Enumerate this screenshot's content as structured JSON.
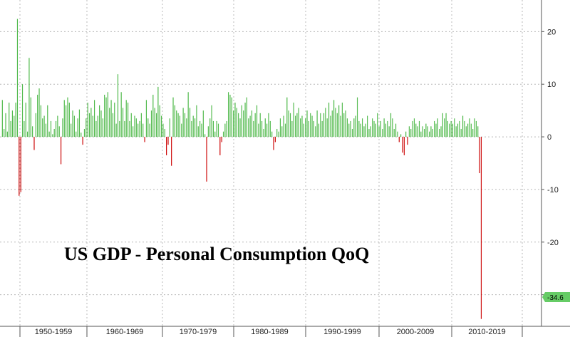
{
  "chart_data": {
    "type": "bar",
    "title": "US GDP - Personal Consumption QoQ",
    "xlabel": "",
    "ylabel": "",
    "ylim": [
      -36,
      26
    ],
    "y_ticks": [
      20,
      10,
      0,
      -10,
      -20,
      -30
    ],
    "y_tick_labels": [
      "20",
      "10",
      "0",
      "-10",
      "-20",
      "-30"
    ],
    "grid": true,
    "last_value_label": "-34.6",
    "decades": [
      "1950-1959",
      "1960-1969",
      "1970-1979",
      "1980-1989",
      "1990-1999",
      "2000-2009",
      "2010-2019"
    ],
    "start": "1947 Q2",
    "frequency": "quarterly",
    "colors": {
      "positive": "#4db848",
      "negative": "#cc0000",
      "badge": "#66cc66"
    },
    "values": [
      7.0,
      1.5,
      4.5,
      1.0,
      6.5,
      3.0,
      5.0,
      4.0,
      6.5,
      22.4,
      -11.2,
      -10.5,
      10.0,
      3.0,
      6.5,
      1.0,
      15.0,
      7.5,
      2.0,
      -2.5,
      4.5,
      8.0,
      9.2,
      6.0,
      3.5,
      4.0,
      2.5,
      6.0,
      1.0,
      3.0,
      0.5,
      1.5,
      3.0,
      4.0,
      2.0,
      -5.2,
      3.5,
      7.0,
      6.0,
      7.5,
      6.5,
      2.5,
      5.0,
      4.0,
      1.0,
      3.5,
      5.2,
      0.8,
      -1.5,
      1.5,
      3.5,
      6.5,
      4.5,
      5.5,
      4.0,
      7.0,
      3.0,
      4.0,
      6.0,
      5.0,
      3.5,
      8.0,
      7.5,
      8.5,
      5.5,
      7.0,
      4.5,
      6.5,
      2.5,
      11.9,
      3.0,
      8.5,
      5.5,
      3.0,
      7.0,
      6.5,
      3.0,
      4.5,
      2.0,
      4.0,
      3.5,
      2.5,
      3.0,
      4.5,
      2.5,
      -1.0,
      7.0,
      3.5,
      2.5,
      5.0,
      8.0,
      5.5,
      4.5,
      9.5,
      6.0,
      4.0,
      2.5,
      1.5,
      -3.5,
      -1.5,
      3.5,
      -5.5,
      7.5,
      6.0,
      5.0,
      4.5,
      4.0,
      2.5,
      5.5,
      4.5,
      3.5,
      8.5,
      5.5,
      3.0,
      4.0,
      3.5,
      6.0,
      2.0,
      3.0,
      2.5,
      5.0,
      0.5,
      -8.5,
      2.0,
      3.5,
      6.0,
      3.0,
      1.0,
      3.0,
      2.5,
      -3.5,
      -1.0,
      1.0,
      2.5,
      3.0,
      8.5,
      8.0,
      7.5,
      5.0,
      6.5,
      5.5,
      4.5,
      3.5,
      6.0,
      5.0,
      6.5,
      7.5,
      3.5,
      4.0,
      5.0,
      3.0,
      4.5,
      6.0,
      2.5,
      4.5,
      3.0,
      1.5,
      3.5,
      2.5,
      4.5,
      3.0,
      1.0,
      -2.5,
      -1.0,
      1.5,
      1.0,
      3.5,
      2.0,
      4.0,
      2.5,
      7.5,
      5.0,
      4.5,
      3.0,
      6.5,
      4.0,
      4.5,
      5.5,
      3.5,
      4.0,
      2.5,
      3.5,
      5.0,
      3.0,
      4.5,
      4.0,
      3.0,
      2.0,
      5.0,
      2.5,
      4.5,
      3.0,
      4.5,
      5.5,
      3.5,
      6.5,
      4.0,
      5.0,
      7.0,
      5.5,
      4.5,
      6.0,
      4.0,
      6.5,
      4.5,
      5.0,
      3.5,
      2.5,
      3.0,
      1.5,
      3.5,
      4.0,
      7.5,
      3.0,
      2.5,
      3.5,
      2.0,
      2.5,
      4.0,
      1.5,
      2.0,
      3.5,
      3.0,
      2.5,
      4.5,
      2.0,
      3.0,
      1.5,
      3.5,
      2.5,
      3.0,
      2.0,
      4.5,
      3.5,
      1.5,
      2.5,
      1.0,
      -1.0,
      0.5,
      -3.0,
      -3.5,
      1.0,
      -1.5,
      2.0,
      1.5,
      3.0,
      3.5,
      2.5,
      2.0,
      3.0,
      1.0,
      2.0,
      1.5,
      2.5,
      2.0,
      1.0,
      2.0,
      1.5,
      3.0,
      2.5,
      3.5,
      1.5,
      2.0,
      4.5,
      3.5,
      4.5,
      3.0,
      2.5,
      3.0,
      2.5,
      3.5,
      2.0,
      2.5,
      3.0,
      1.5,
      4.0,
      3.0,
      2.0,
      2.5,
      3.5,
      2.5,
      1.5,
      3.5,
      3.0,
      2.0,
      -6.9,
      -34.6
    ]
  }
}
